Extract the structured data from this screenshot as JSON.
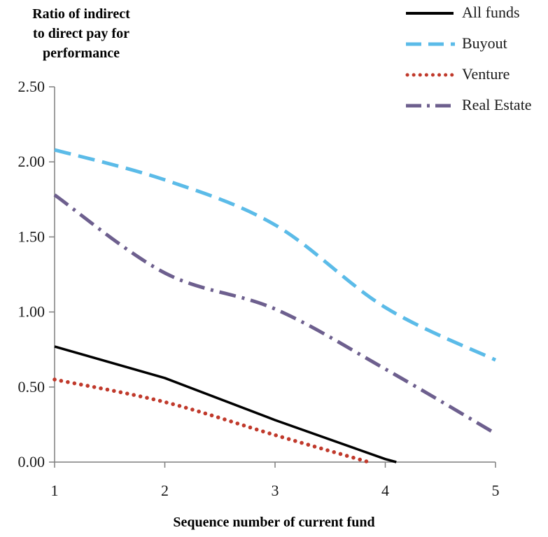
{
  "chart_data": {
    "type": "line",
    "ylabel": [
      "Ratio of indirect",
      "to direct pay for",
      "performance"
    ],
    "xlabel": "Sequence number of current fund",
    "x": [
      1,
      2,
      3,
      4,
      5
    ],
    "xlim": [
      1,
      5
    ],
    "ylim": [
      0,
      2.5
    ],
    "x_ticks": [
      "1",
      "2",
      "3",
      "4",
      "5"
    ],
    "y_ticks": [
      "0.00",
      "0.50",
      "1.00",
      "1.50",
      "2.00",
      "2.50"
    ],
    "grid": false,
    "legend_position": "top-right",
    "series": [
      {
        "name": "All funds",
        "color": "#000000",
        "style": "solid",
        "points": [
          [
            1,
            0.77
          ],
          [
            2,
            0.56
          ],
          [
            3,
            0.28
          ],
          [
            4,
            0.02
          ],
          [
            4.1,
            0.0
          ]
        ]
      },
      {
        "name": "Buyout",
        "color": "#5bbbe8",
        "style": "dashed",
        "points": [
          [
            1,
            2.08
          ],
          [
            2,
            1.88
          ],
          [
            3,
            1.58
          ],
          [
            4,
            1.03
          ],
          [
            5,
            0.68
          ]
        ]
      },
      {
        "name": "Venture",
        "color": "#c0392b",
        "style": "dotted",
        "points": [
          [
            1,
            0.55
          ],
          [
            2,
            0.4
          ],
          [
            3,
            0.18
          ],
          [
            3.85,
            0.0
          ]
        ]
      },
      {
        "name": "Real Estate",
        "color": "#6d5f8e",
        "style": "dashdot",
        "points": [
          [
            1,
            1.78
          ],
          [
            2,
            1.26
          ],
          [
            3,
            1.02
          ],
          [
            4,
            0.62
          ],
          [
            5,
            0.19
          ]
        ]
      }
    ]
  }
}
